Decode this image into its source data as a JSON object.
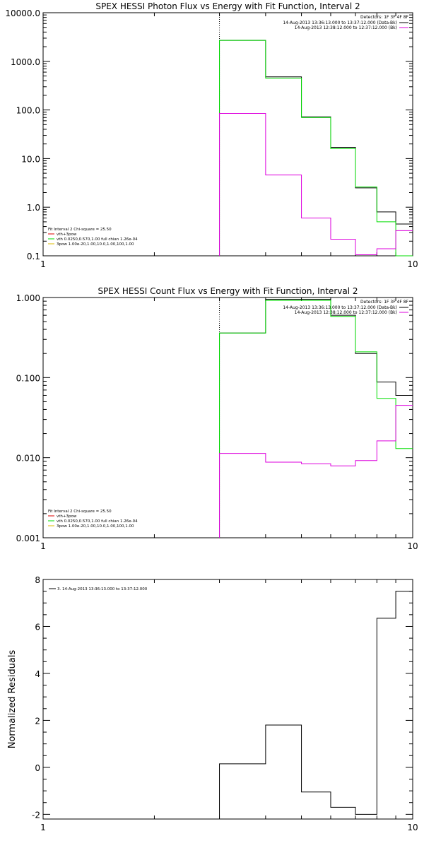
{
  "colors": {
    "black": "#000000",
    "green": "#00dd00",
    "magenta": "#dd00dd",
    "yellow": "#ddbb00",
    "red": "#dd0000"
  },
  "chart_data": [
    {
      "type": "line",
      "title": "SPEX HESSI Photon Flux vs Energy with Fit Function, Interval 2",
      "xlabel": "",
      "ylabel": "",
      "xscale": "log",
      "yscale": "log",
      "xlim": [
        1,
        10
      ],
      "ylim": [
        0.1,
        10000
      ],
      "xticks": [
        "1",
        "10"
      ],
      "yticks": [
        "10000.0",
        "1000.0",
        "100.0",
        "10.0",
        "1.0",
        "0.1"
      ],
      "vline_x": 3.0,
      "legend_top_right": {
        "detectors": "Detectors: 1F 3F 4F 8F",
        "entries": [
          {
            "label": "14-Aug-2013 13:36:13.000 to 13:37:12.000 (Data-Bk)",
            "color": "#000000"
          },
          {
            "label": "14-Aug-2013 12:38:12.000 to 12:37:12.000 (Bk)",
            "color": "#dd00dd"
          }
        ]
      },
      "legend_bottom_left": {
        "header": "Fit Interval 2   Chi-square = 25.50",
        "entries": [
          {
            "label": "vth+3pow",
            "color": "#dd0000"
          },
          {
            "label": "vth 0.0250,0.570,1.00  full chian 1.26e-04",
            "color": "#00dd00"
          },
          {
            "label": "3pow 1.00e-20,1.00,10.0,1.00,100,1.00",
            "color": "#ddbb00"
          }
        ]
      },
      "bin_edges": [
        3,
        4,
        5,
        6,
        7,
        8,
        9,
        10
      ],
      "series": [
        {
          "name": "Data-Bk",
          "color": "#000000",
          "values": [
            2700,
            480,
            72,
            17,
            2.5,
            0.8,
            0.45
          ]
        },
        {
          "name": "vth+3pow",
          "color": "#00dd00",
          "values": [
            2700,
            450,
            70,
            16,
            2.6,
            0.5,
            0.1
          ]
        },
        {
          "name": "Bk",
          "color": "#dd00dd",
          "values": [
            85,
            4.6,
            0.6,
            0.22,
            0.105,
            0.14,
            0.33
          ]
        }
      ]
    },
    {
      "type": "line",
      "title": "SPEX HESSI Count Flux vs Energy with Fit Function, Interval 2",
      "xlabel": "",
      "ylabel": "",
      "xscale": "log",
      "yscale": "log",
      "xlim": [
        1,
        10
      ],
      "ylim": [
        0.001,
        1.0
      ],
      "xticks": [
        "1",
        "10"
      ],
      "yticks": [
        "1.000",
        "0.100",
        "0.010",
        "0.001"
      ],
      "vline_x": 3.0,
      "legend_top_right": {
        "detectors": "Detectors: 1F 3F 4F 8F",
        "entries": [
          {
            "label": "14-Aug-2013 13:36:13.000 to 13:37:12.000 (Data-Bk)",
            "color": "#000000"
          },
          {
            "label": "14-Aug-2013 12:38:12.000 to 12:37:12.000 (Bk)",
            "color": "#dd00dd"
          }
        ]
      },
      "legend_bottom_left": {
        "header": "Fit Interval 2   Chi-square = 25.50",
        "entries": [
          {
            "label": "vth+3pow",
            "color": "#dd0000"
          },
          {
            "label": "vth 0.0250,0.570,1.00  full chian 1.26e-04",
            "color": "#00dd00"
          },
          {
            "label": "3pow 1.00e-20,1.00,10.0,1.00,100,1.00",
            "color": "#ddbb00"
          }
        ]
      },
      "bin_edges": [
        3,
        4,
        5,
        6,
        7,
        8,
        9,
        10
      ],
      "series": [
        {
          "name": "Data-Bk",
          "color": "#000000",
          "values": [
            0.36,
            0.95,
            0.95,
            0.6,
            0.2,
            0.088,
            0.06
          ]
        },
        {
          "name": "vth+3pow",
          "color": "#00dd00",
          "values": [
            0.36,
            0.92,
            0.92,
            0.58,
            0.21,
            0.055,
            0.013
          ]
        },
        {
          "name": "Bk",
          "color": "#dd00dd",
          "values": [
            0.0113,
            0.0088,
            0.0084,
            0.0079,
            0.0092,
            0.0162,
            0.045
          ]
        }
      ]
    },
    {
      "type": "line",
      "title": "",
      "xlabel": "",
      "ylabel": "Normalized Residuals",
      "xscale": "log",
      "yscale": "linear",
      "xlim": [
        1,
        10
      ],
      "ylim": [
        -2.2,
        8
      ],
      "xticks": [
        "1",
        "10"
      ],
      "yticks": [
        "8",
        "6",
        "4",
        "2",
        "0",
        "-2"
      ],
      "legend_top_left": {
        "entries": [
          {
            "label": "3. 14-Aug-2013 13:36:13.000 to 13:37:12.000",
            "color": "#000000"
          }
        ]
      },
      "bin_edges": [
        3,
        4,
        5,
        6,
        7,
        8,
        9,
        10
      ],
      "series": [
        {
          "name": "",
          "color": "#000000",
          "values": [
            0.15,
            1.8,
            -1.05,
            -1.7,
            -2.0,
            6.35,
            7.5
          ]
        }
      ]
    }
  ]
}
